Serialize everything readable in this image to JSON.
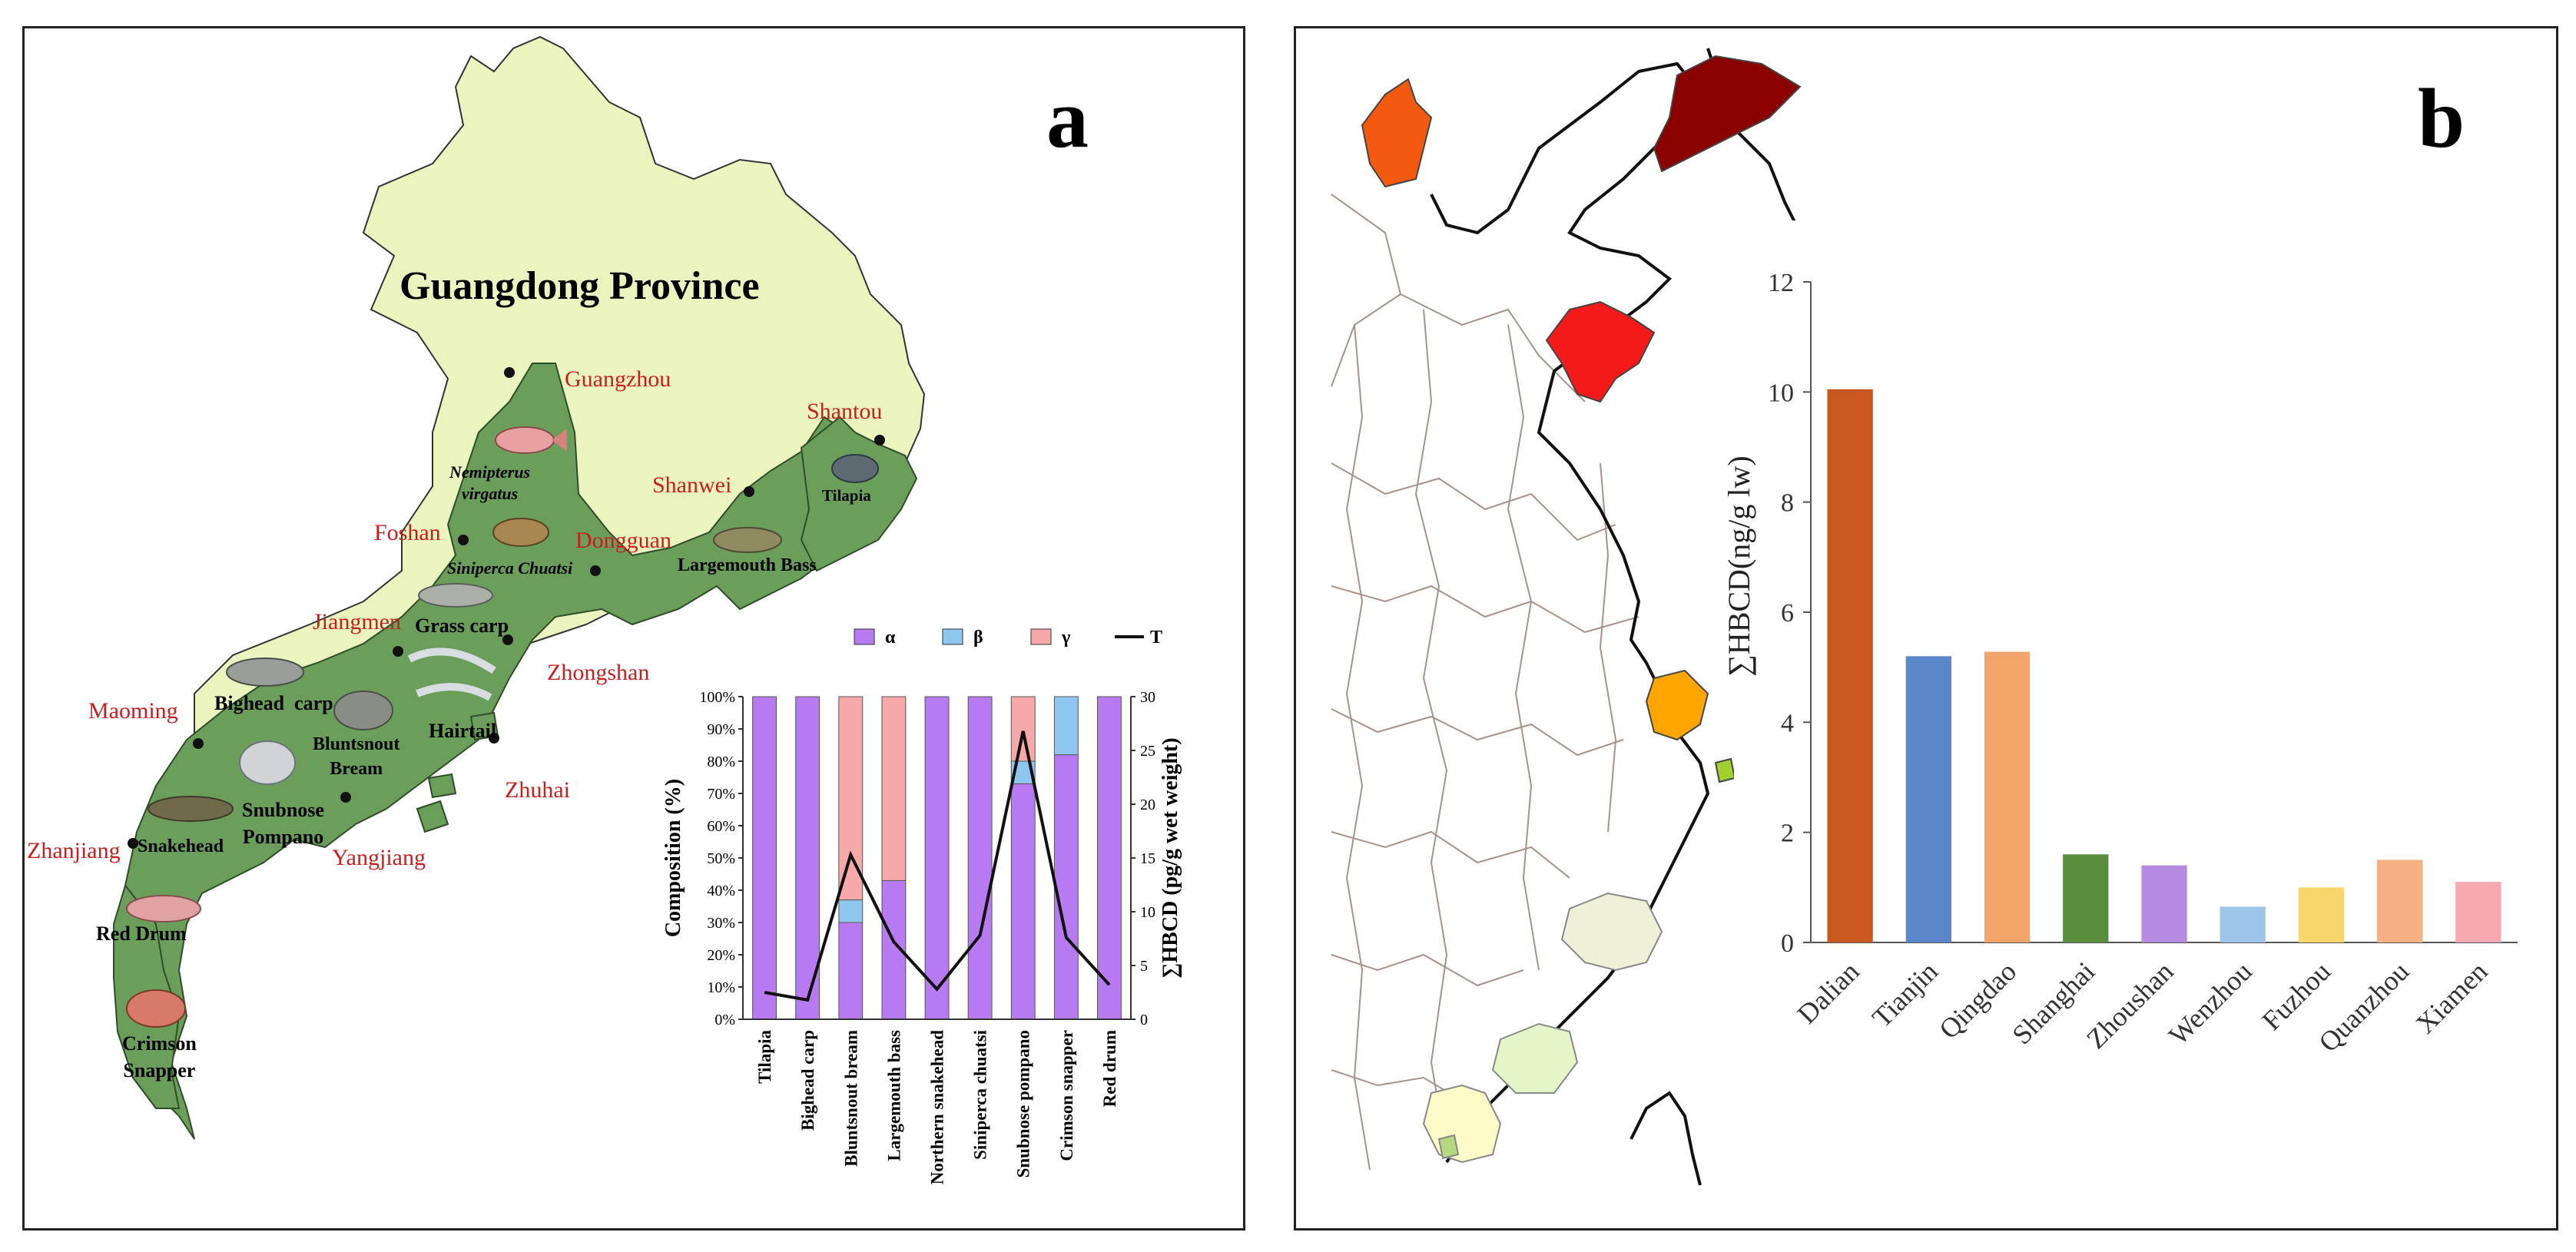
{
  "panel_a": {
    "label": "a",
    "province_title": "Guangdong Province",
    "cities": [
      {
        "id": "guangzhou",
        "name": "Guangzhou"
      },
      {
        "id": "shantou",
        "name": "Shantou"
      },
      {
        "id": "shanwei",
        "name": "Shanwei"
      },
      {
        "id": "foshan",
        "name": "Foshan"
      },
      {
        "id": "dongguan",
        "name": "Dongguan"
      },
      {
        "id": "jiangmen",
        "name": "Jiangmen"
      },
      {
        "id": "zhongshan",
        "name": "Zhongshan"
      },
      {
        "id": "maoming",
        "name": "Maoming"
      },
      {
        "id": "zhuhai",
        "name": "Zhuhai"
      },
      {
        "id": "yangjiang",
        "name": "Yangjiang"
      },
      {
        "id": "zhanjiang",
        "name": "Zhanjiang"
      }
    ],
    "fish_labels": {
      "nemipterus_1": "Nemipterus",
      "nemipterus_2": "virgatus",
      "tilapia": "Tilapia",
      "siniperca": "Siniperca Chuatsi",
      "largemouth": "Largemouth Bass",
      "grass_carp": "Grass carp",
      "bighead": "Bighead  carp",
      "hairtail": "Hairtail",
      "bluntsnout_1": "Bluntsnout",
      "bluntsnout_2": "Bream",
      "snubnose_1": "Snubnose",
      "snubnose_2": "Pompano",
      "snakehead": "Snakehead",
      "red_drum": "Red Drum",
      "crimson_1": "Crimson",
      "crimson_2": "Snapper"
    }
  },
  "chart_a": {
    "type": "bar",
    "stacked": true,
    "categories": [
      "Tilapia",
      "Bighead carp",
      "Bluntsnout bream",
      "Largemouth bass",
      "Northern snakehead",
      "Siniperca chuatsi",
      "Snubnose pompano",
      "Crimson snapper",
      "Red drum"
    ],
    "series": [
      {
        "name": "α",
        "color": "#b77af0",
        "values": [
          100,
          100,
          30,
          43,
          100,
          100,
          73,
          82,
          100
        ]
      },
      {
        "name": "β",
        "color": "#8ec6ef",
        "values": [
          0,
          0,
          7,
          0,
          0,
          0,
          7,
          18,
          0
        ]
      },
      {
        "name": "γ",
        "color": "#f7a8a8",
        "values": [
          0,
          0,
          63,
          57,
          0,
          0,
          20,
          0,
          0
        ]
      }
    ],
    "line_series": {
      "name": "T",
      "color": "#111111",
      "values": [
        2.5,
        1.8,
        15.3,
        7.2,
        2.8,
        7.8,
        26.8,
        7.6,
        3.2
      ]
    },
    "ylabel": "Composition (%)",
    "y2label": "∑HBCD (pg/g wet weight)",
    "y_ticks": [
      "0%",
      "10%",
      "20%",
      "30%",
      "40%",
      "50%",
      "60%",
      "70%",
      "80%",
      "90%",
      "100%"
    ],
    "y2_ticks": [
      "0",
      "5",
      "10",
      "15",
      "20",
      "25",
      "30"
    ],
    "ylim": [
      0,
      100
    ],
    "y2lim": [
      0,
      30
    ],
    "legend_placement": "top"
  },
  "panel_b": {
    "label": "b"
  },
  "chart_b": {
    "type": "bar",
    "categories": [
      "Dalian",
      "Tianjin",
      "Qingdao",
      "Shanghai",
      "Zhoushan",
      "Wenzhou",
      "Fuzhou",
      "Quanzhou",
      "Xiamen"
    ],
    "values": [
      10.05,
      5.2,
      5.28,
      1.6,
      1.4,
      0.65,
      1.0,
      1.5,
      1.1
    ],
    "colors": [
      "#c8581f",
      "#5b86c9",
      "#f3a46a",
      "#5a8c3d",
      "#b48be0",
      "#9fc4ea",
      "#f9d66c",
      "#f6b084",
      "#f7a8b0"
    ],
    "ylabel": "∑HBCD(ng/g lw)",
    "y_ticks": [
      "0",
      "2",
      "4",
      "6",
      "8",
      "10",
      "12"
    ],
    "ylim": [
      0,
      12
    ]
  }
}
